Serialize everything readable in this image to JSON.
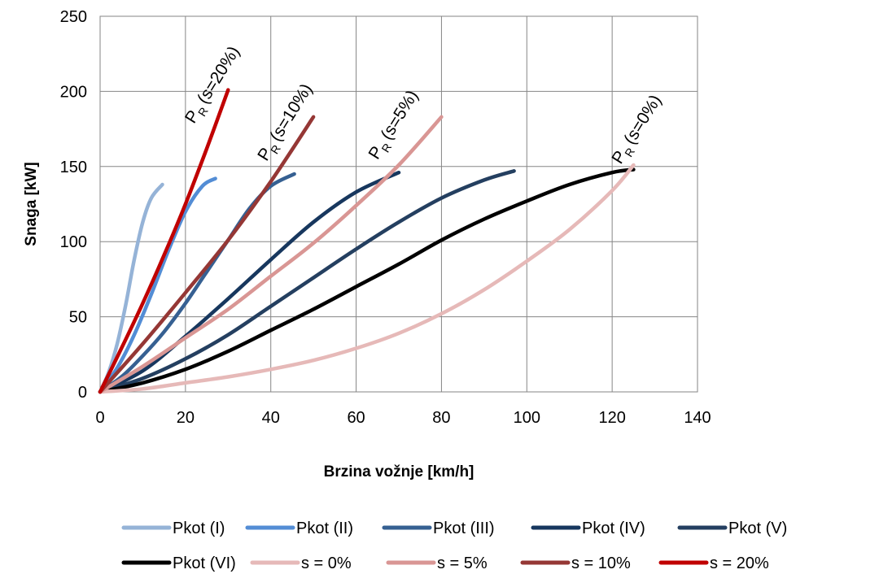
{
  "chart_data": {
    "type": "line",
    "title": "",
    "xlabel": "Brzina vožnje [km/h]",
    "ylabel": "Snaga [kW]",
    "xlim": [
      0,
      140
    ],
    "ylim": [
      0,
      250
    ],
    "x_ticks": [
      "0",
      "20",
      "40",
      "60",
      "80",
      "100",
      "120",
      "140"
    ],
    "y_ticks": [
      "0",
      "50",
      "100",
      "150",
      "200",
      "250"
    ],
    "grid": true,
    "legend_position": "bottom",
    "series": [
      {
        "name": "Pkot (I)",
        "color": "#95B3D7",
        "x": [
          0,
          2,
          4,
          6,
          8,
          10,
          12,
          14.6
        ],
        "y": [
          0,
          13,
          32,
          58,
          88,
          113,
          129,
          138
        ]
      },
      {
        "name": "Pkot (II)",
        "color": "#538DD5",
        "x": [
          0,
          4,
          8,
          12,
          16,
          20,
          24,
          27
        ],
        "y": [
          0,
          16,
          38,
          65,
          94,
          120,
          137,
          142
        ]
      },
      {
        "name": "Pkot (III)",
        "color": "#366092",
        "x": [
          0,
          5,
          10,
          15,
          20,
          25,
          30,
          35,
          40,
          45.5
        ],
        "y": [
          0,
          10,
          24,
          40,
          59,
          80,
          101,
          122,
          137,
          145
        ]
      },
      {
        "name": "Pkot (IV)",
        "color": "#17375E",
        "x": [
          0,
          10,
          20,
          30,
          40,
          50,
          60,
          70
        ],
        "y": [
          0,
          14,
          37,
          62,
          88,
          113,
          133,
          146
        ]
      },
      {
        "name": "Pkot (V)",
        "color": "#243F60",
        "x": [
          0,
          10,
          20,
          30,
          40,
          50,
          60,
          70,
          80,
          90,
          97
        ],
        "y": [
          0,
          9,
          22,
          38,
          57,
          76,
          95,
          113,
          129,
          141,
          147
        ]
      },
      {
        "name": "Pkot (VI)",
        "color": "#000000",
        "x": [
          0,
          10,
          20,
          30,
          40,
          50,
          60,
          70,
          80,
          90,
          100,
          110,
          120,
          125
        ],
        "y": [
          0,
          6,
          15,
          27,
          41,
          55,
          70,
          85,
          101,
          115,
          127,
          138,
          146,
          148
        ]
      },
      {
        "name": "s = 0%",
        "color": "#E6B9B8",
        "x": [
          0,
          10,
          20,
          30,
          40,
          50,
          60,
          70,
          80,
          90,
          100,
          110,
          120,
          125
        ],
        "y": [
          0,
          2,
          6,
          10,
          15,
          21,
          29,
          39,
          52,
          68,
          87,
          108,
          134,
          151
        ]
      },
      {
        "name": "s = 5%",
        "color": "#D99694",
        "x": [
          0,
          10,
          20,
          30,
          40,
          50,
          60,
          70,
          80
        ],
        "y": [
          0,
          17,
          36,
          55,
          77,
          99,
          124,
          151,
          183
        ]
      },
      {
        "name": "s = 10%",
        "color": "#953735",
        "x": [
          0,
          10,
          20,
          30,
          40,
          50
        ],
        "y": [
          0,
          32,
          66,
          101,
          140,
          183
        ]
      },
      {
        "name": "s = 20%",
        "color": "#C00000",
        "x": [
          0,
          5,
          10,
          15,
          20,
          25,
          30
        ],
        "y": [
          0,
          29,
          59,
          91,
          125,
          162,
          201
        ]
      }
    ],
    "annotations": [
      {
        "main": "P",
        "sub": "R",
        "text": "(s=20%)"
      },
      {
        "main": "P",
        "sub": "R",
        "text": "(s=10%)"
      },
      {
        "main": "P",
        "sub": "R",
        "text": "(s=5%)"
      },
      {
        "main": "P",
        "sub": "R",
        "text": "(s=0%)"
      }
    ]
  }
}
